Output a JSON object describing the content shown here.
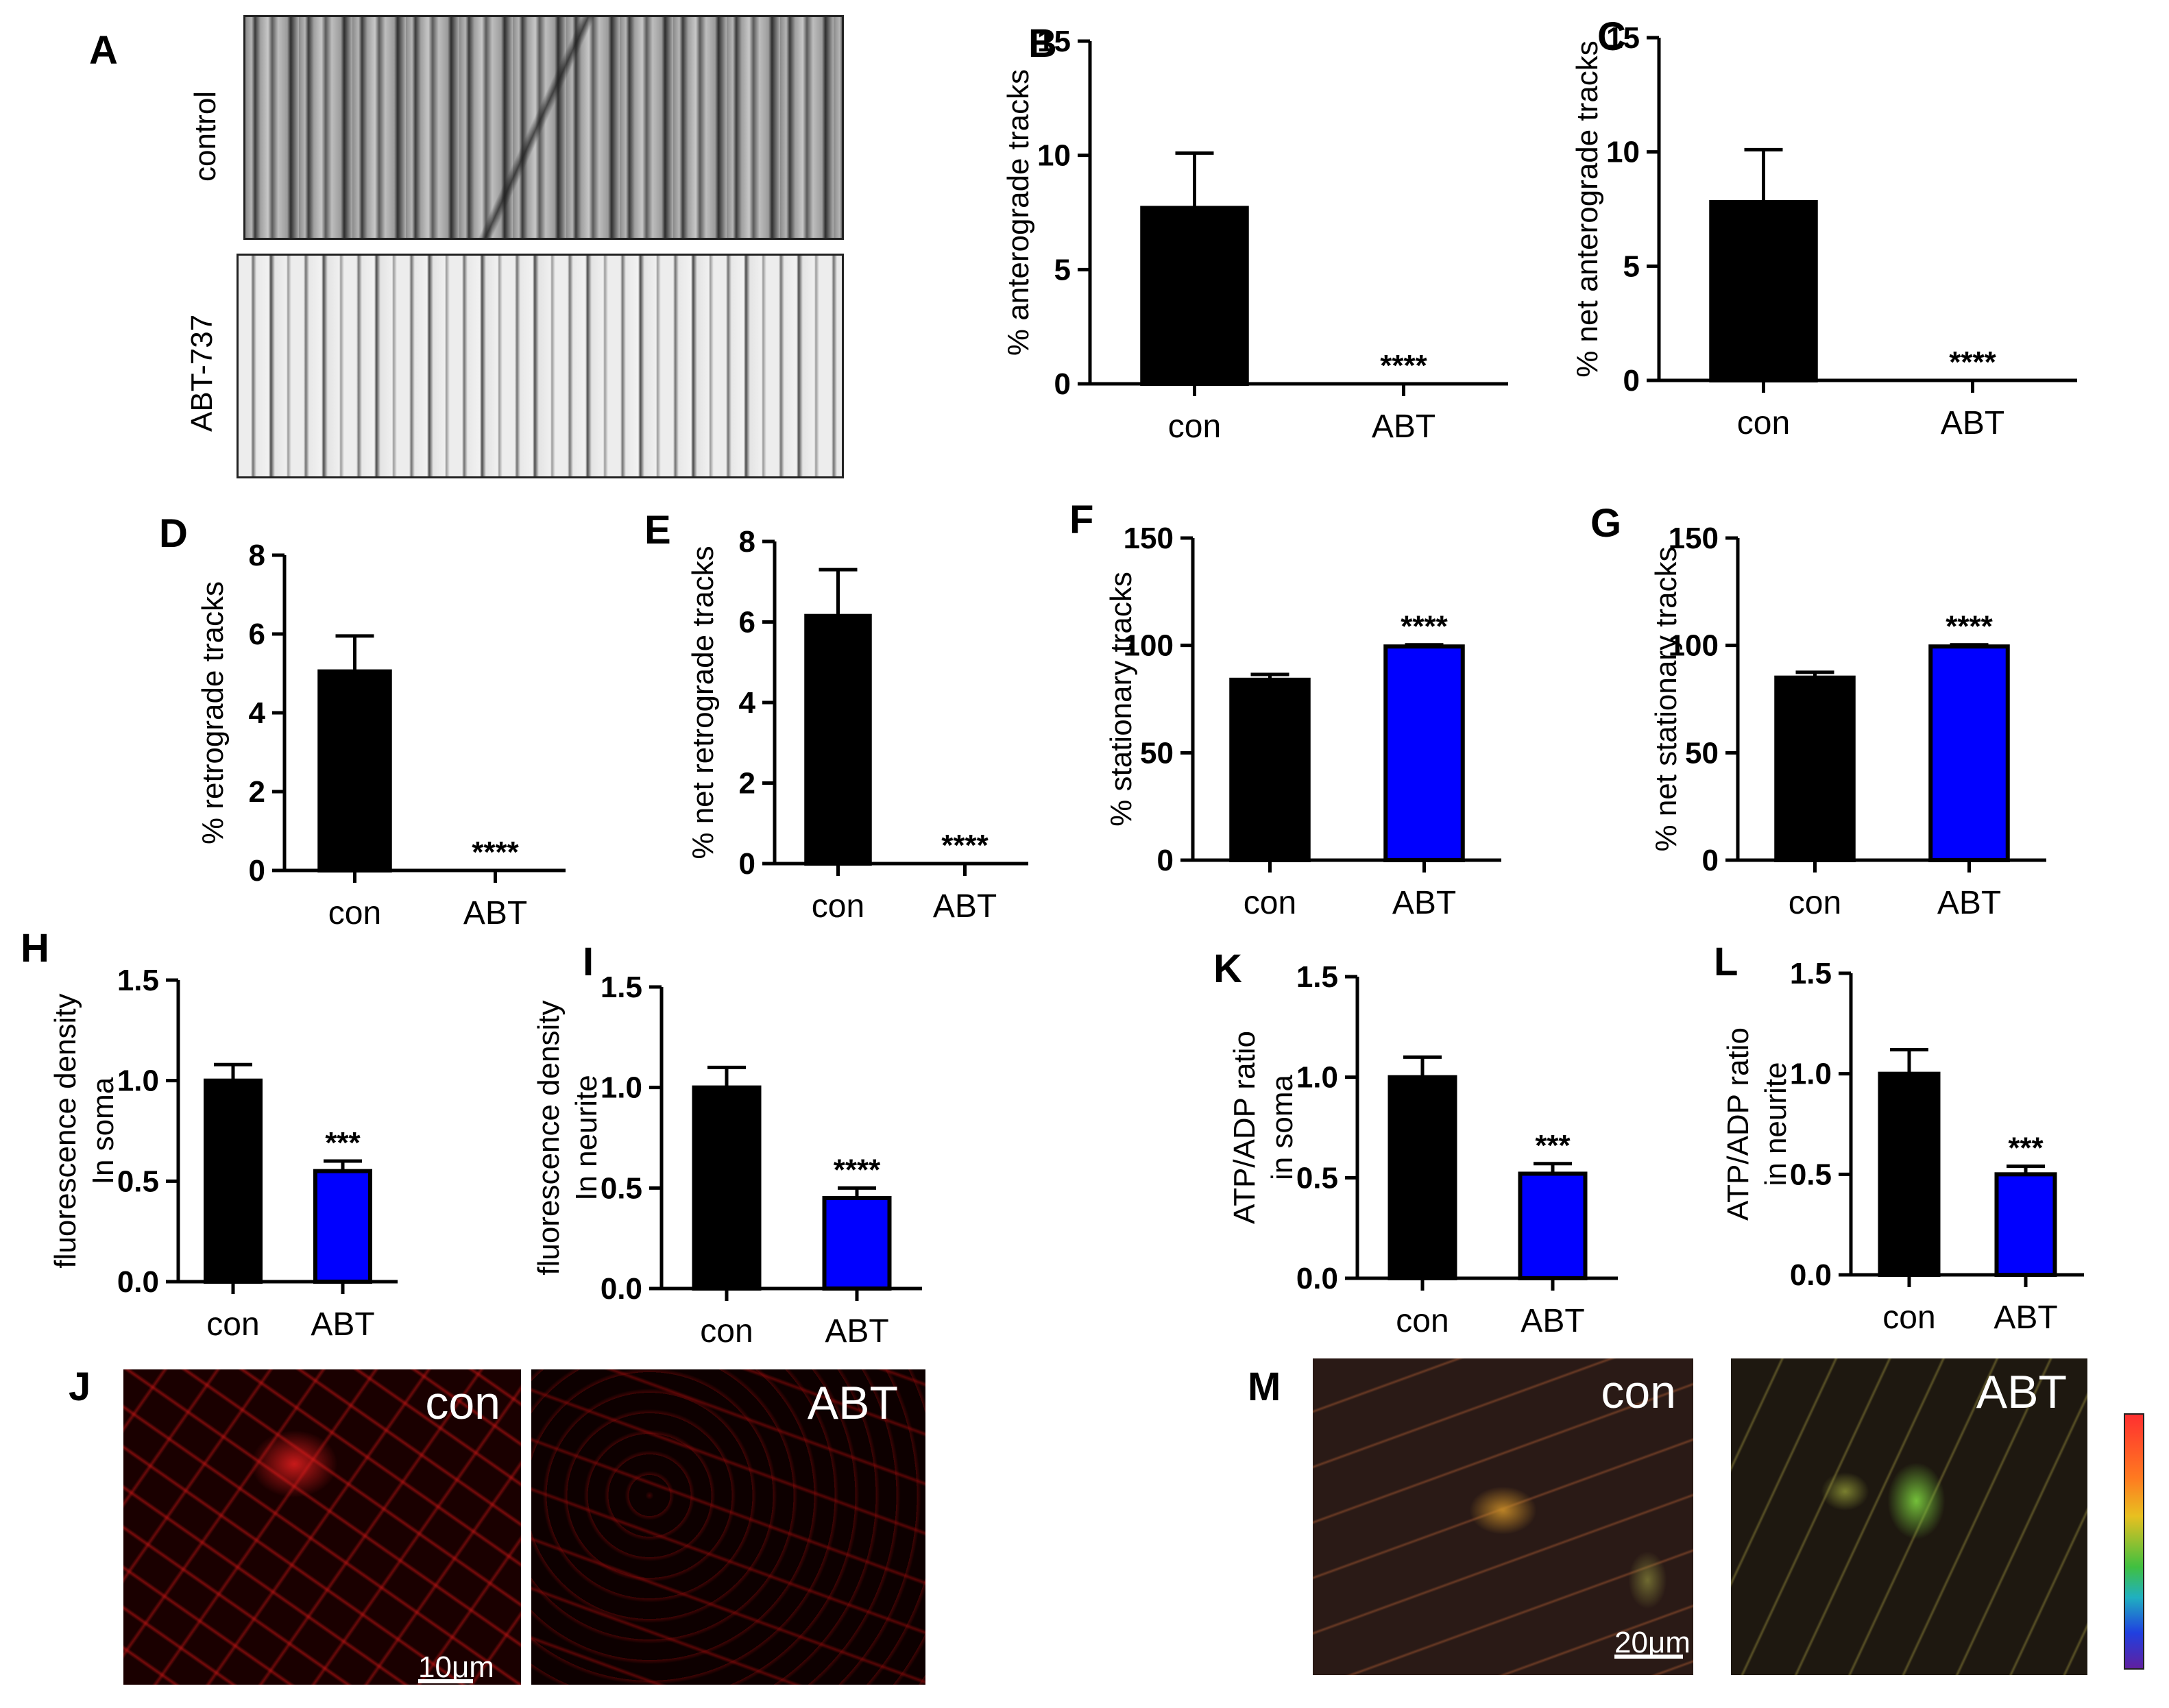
{
  "panel_letters": {
    "A": "A",
    "B": "B",
    "C": "C",
    "D": "D",
    "E": "E",
    "F": "F",
    "G": "G",
    "H": "H",
    "I": "I",
    "J": "J",
    "K": "K",
    "L": "L",
    "M": "M"
  },
  "kymograph": {
    "control_label": "control",
    "treated_label": "ABT-737"
  },
  "colors": {
    "control": "#000000",
    "abt": "#0000ff"
  },
  "chart_data": [
    {
      "id": "B",
      "type": "bar",
      "categories": [
        "con",
        "ABT"
      ],
      "values": [
        7.7,
        0
      ],
      "errors": [
        2.4,
        0
      ],
      "ylabel": "%  anterograde tracks",
      "yticks": [
        "0",
        "5",
        "10",
        "15"
      ],
      "ylim": [
        0,
        15
      ],
      "sig": "****",
      "abt_fill": "none"
    },
    {
      "id": "C",
      "type": "bar",
      "categories": [
        "con",
        "ABT"
      ],
      "values": [
        7.8,
        0
      ],
      "errors": [
        2.3,
        0
      ],
      "ylabel": "% net anterograde tracks",
      "yticks": [
        "0",
        "5",
        "10",
        "15"
      ],
      "ylim": [
        0,
        15
      ],
      "sig": "****",
      "abt_fill": "none"
    },
    {
      "id": "D",
      "type": "bar",
      "categories": [
        "con",
        "ABT"
      ],
      "values": [
        5.05,
        0
      ],
      "errors": [
        0.9,
        0
      ],
      "ylabel": "%  retrograde tracks",
      "yticks": [
        "0",
        "2",
        "4",
        "6",
        "8"
      ],
      "ylim": [
        0,
        8
      ],
      "sig": "****",
      "abt_fill": "none"
    },
    {
      "id": "E",
      "type": "bar",
      "categories": [
        "con",
        "ABT"
      ],
      "values": [
        6.15,
        0
      ],
      "errors": [
        1.15,
        0
      ],
      "ylabel": "% net retrograde tracks",
      "yticks": [
        "0",
        "2",
        "4",
        "6",
        "8"
      ],
      "ylim": [
        0,
        8
      ],
      "sig": "****",
      "abt_fill": "none"
    },
    {
      "id": "F",
      "type": "bar",
      "categories": [
        "con",
        "ABT"
      ],
      "values": [
        84,
        99.5
      ],
      "errors": [
        2.5,
        0.8
      ],
      "ylabel": "%  stationary tracks",
      "yticks": [
        "0",
        "50",
        "100",
        "150"
      ],
      "ylim": [
        0,
        150
      ],
      "sig": "****",
      "abt_fill": "#0000ff"
    },
    {
      "id": "G",
      "type": "bar",
      "categories": [
        "con",
        "ABT"
      ],
      "values": [
        85,
        99.5
      ],
      "errors": [
        2.5,
        0.8
      ],
      "ylabel": "% net stationary tracks",
      "yticks": [
        "0",
        "50",
        "100",
        "150"
      ],
      "ylim": [
        0,
        150
      ],
      "sig": "****",
      "abt_fill": "#0000ff"
    },
    {
      "id": "H",
      "type": "bar",
      "categories": [
        "con",
        "ABT"
      ],
      "values": [
        1.0,
        0.55
      ],
      "errors": [
        0.08,
        0.05
      ],
      "ylabel": [
        "fluorescence density",
        "In soma"
      ],
      "yticks": [
        "0.0",
        "0.5",
        "1.0",
        "1.5"
      ],
      "ylim": [
        0,
        1.5
      ],
      "sig": "***",
      "abt_fill": "#0000ff"
    },
    {
      "id": "I",
      "type": "bar",
      "categories": [
        "con",
        "ABT"
      ],
      "values": [
        1.0,
        0.45
      ],
      "errors": [
        0.1,
        0.05
      ],
      "ylabel": [
        "fluorescence density",
        "In neurite"
      ],
      "yticks": [
        "0.0",
        "0.5",
        "1.0",
        "1.5"
      ],
      "ylim": [
        0,
        1.5
      ],
      "sig": "****",
      "abt_fill": "#0000ff"
    },
    {
      "id": "K",
      "type": "bar",
      "categories": [
        "con",
        "ABT"
      ],
      "values": [
        1.0,
        0.52
      ],
      "errors": [
        0.1,
        0.05
      ],
      "ylabel": [
        "ATP/ADP ratio",
        "in soma"
      ],
      "yticks": [
        "0.0",
        "0.5",
        "1.0",
        "1.5"
      ],
      "ylim": [
        0,
        1.5
      ],
      "sig": "***",
      "abt_fill": "#0000ff"
    },
    {
      "id": "L",
      "type": "bar",
      "categories": [
        "con",
        "ABT"
      ],
      "values": [
        1.0,
        0.5
      ],
      "errors": [
        0.12,
        0.04
      ],
      "ylabel": [
        "ATP/ADP ratio",
        "in neurite"
      ],
      "yticks": [
        "0.0",
        "0.5",
        "1.0",
        "1.5"
      ],
      "ylim": [
        0,
        1.5
      ],
      "sig": "***",
      "abt_fill": "#0000ff"
    }
  ],
  "micrographs": {
    "J_con": "con",
    "J_abt": "ABT",
    "J_scale": "10μm",
    "M_con": "con",
    "M_abt": "ABT",
    "M_scale": "20μm"
  }
}
